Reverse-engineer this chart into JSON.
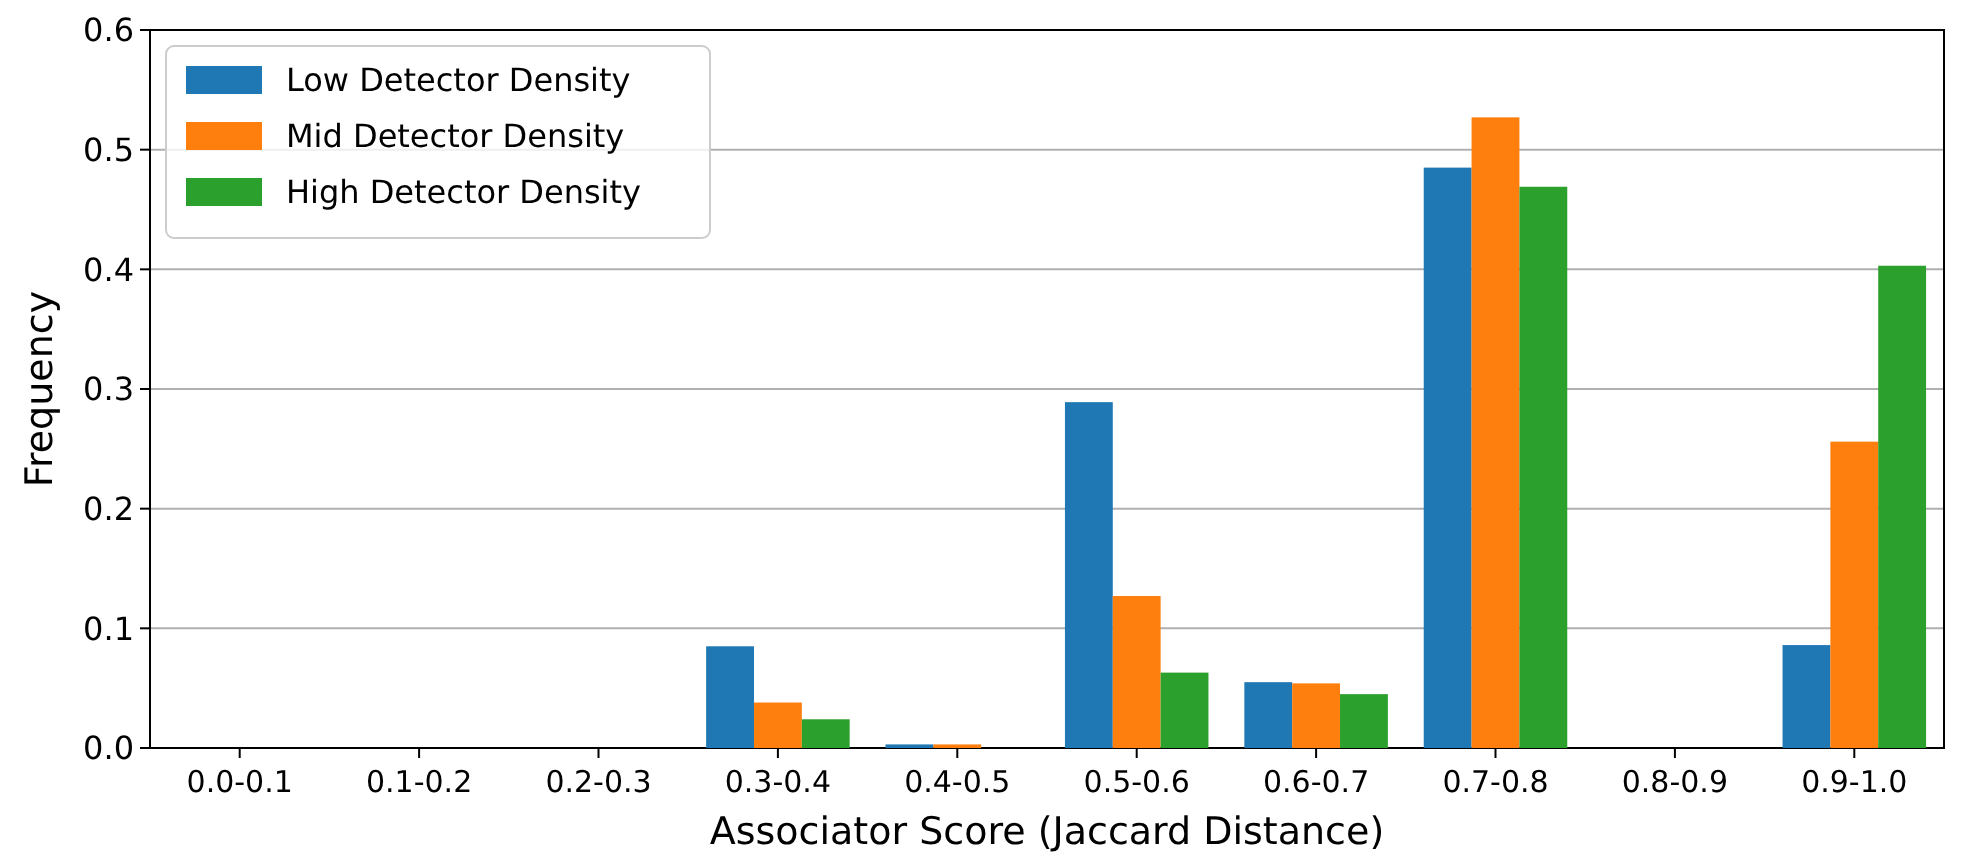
{
  "chart_data": {
    "type": "bar",
    "xlabel": "Associator Score (Jaccard Distance)",
    "ylabel": "Frequency",
    "categories": [
      "0.0-0.1",
      "0.1-0.2",
      "0.2-0.3",
      "0.3-0.4",
      "0.4-0.5",
      "0.5-0.6",
      "0.6-0.7",
      "0.7-0.8",
      "0.8-0.9",
      "0.9-1.0"
    ],
    "series": [
      {
        "name": "Low Detector Density",
        "color": "#1f77b4",
        "values": [
          0,
          0,
          0,
          0.085,
          0.003,
          0.289,
          0.055,
          0.485,
          0,
          0.086
        ]
      },
      {
        "name": "Mid Detector Density",
        "color": "#ff7f0e",
        "values": [
          0,
          0,
          0,
          0.038,
          0.003,
          0.127,
          0.054,
          0.527,
          0,
          0.256
        ]
      },
      {
        "name": "High Detector Density",
        "color": "#2ca02c",
        "values": [
          0,
          0,
          0,
          0.024,
          0,
          0.063,
          0.045,
          0.469,
          0,
          0.403
        ]
      }
    ],
    "ylim": [
      0,
      0.6
    ],
    "yticks": [
      {
        "value": 0,
        "label": "0.0"
      },
      0.1,
      0.2,
      0.3,
      0.4,
      0.5,
      0.6
    ],
    "grid": "y",
    "legend": "top left"
  }
}
